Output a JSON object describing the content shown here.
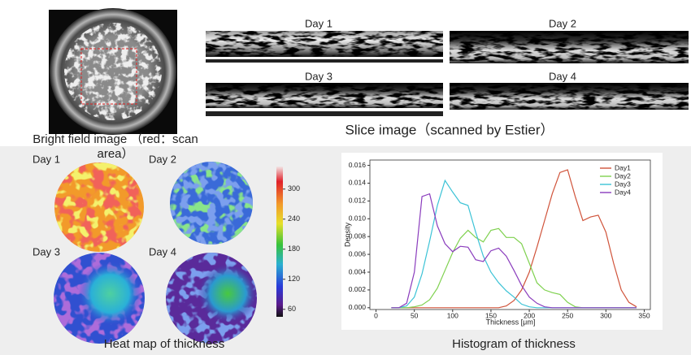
{
  "bright_field": {
    "caption": "Bright field image （red：scan area）"
  },
  "slices": {
    "title": "Slice image（scanned by Estier）",
    "labels": [
      "Day 1",
      "Day 2",
      "Day 3",
      "Day 4"
    ]
  },
  "heatmap": {
    "title": "Heat map of thickness",
    "labels": [
      "Day 1",
      "Day 2",
      "Day 3",
      "Day 4"
    ],
    "colorbar_lim": [
      45,
      345
    ],
    "colorbar_ticks": [
      60,
      120,
      180,
      240,
      300
    ]
  },
  "chart_data": {
    "type": "line",
    "title": "Histogram of thickness",
    "xlabel": "Thickness [μm]",
    "ylabel": "Density",
    "x": [
      20,
      30,
      40,
      50,
      60,
      70,
      80,
      90,
      100,
      110,
      120,
      130,
      140,
      150,
      160,
      170,
      180,
      190,
      200,
      210,
      220,
      230,
      240,
      250,
      260,
      270,
      280,
      290,
      300,
      310,
      320,
      330,
      340
    ],
    "series": [
      {
        "name": "Day1",
        "color": "#d0533a",
        "values": [
          0,
          0,
          0,
          0,
          0,
          0,
          0,
          0,
          0,
          0,
          0,
          0,
          0,
          0,
          0,
          0.0002,
          0.0008,
          0.002,
          0.004,
          0.0068,
          0.0098,
          0.0128,
          0.0152,
          0.0155,
          0.0125,
          0.0098,
          0.0102,
          0.0104,
          0.0085,
          0.005,
          0.002,
          0.0006,
          0.0001
        ]
      },
      {
        "name": "Day2",
        "color": "#7fd14f",
        "values": [
          0,
          0,
          0,
          0.0001,
          0.0003,
          0.0009,
          0.0022,
          0.0042,
          0.0062,
          0.0078,
          0.0087,
          0.0079,
          0.0074,
          0.0087,
          0.0089,
          0.0079,
          0.0079,
          0.0072,
          0.005,
          0.0028,
          0.002,
          0.0017,
          0.0015,
          0.0006,
          0.0001,
          0,
          0,
          0,
          0,
          0,
          0,
          0,
          0
        ]
      },
      {
        "name": "Day3",
        "color": "#3cc3d6",
        "values": [
          0,
          0,
          0.0002,
          0.0012,
          0.0038,
          0.0075,
          0.0115,
          0.0143,
          0.013,
          0.0118,
          0.0115,
          0.0085,
          0.0058,
          0.004,
          0.0028,
          0.0019,
          0.0012,
          0.0004,
          0.0001,
          0,
          0,
          0,
          0,
          0,
          0,
          0,
          0,
          0,
          0,
          0,
          0,
          0,
          0
        ]
      },
      {
        "name": "Day4",
        "color": "#8a3cbd",
        "values": [
          0,
          0,
          0.0005,
          0.004,
          0.0125,
          0.0128,
          0.0092,
          0.0072,
          0.0063,
          0.0069,
          0.0068,
          0.0054,
          0.0052,
          0.0064,
          0.0067,
          0.0058,
          0.0042,
          0.0025,
          0.0012,
          0.0005,
          0.0001,
          0,
          0,
          0,
          0,
          0,
          0,
          0,
          0,
          0,
          0,
          0,
          0
        ]
      }
    ],
    "xlim": [
      -8,
      358
    ],
    "xticks": [
      0,
      50,
      100,
      150,
      200,
      250,
      300,
      350
    ],
    "ylim": [
      -0.0002,
      0.0166
    ],
    "yticks": [
      {
        "value": 0,
        "label": "0.000"
      },
      {
        "value": 0.002,
        "label": "0.002"
      },
      {
        "value": 0.004,
        "label": "0.004"
      },
      {
        "value": 0.006,
        "label": "0.006"
      },
      {
        "value": 0.008,
        "label": "0.008"
      },
      {
        "value": 0.01,
        "label": "0.010"
      },
      {
        "value": 0.012,
        "label": "0.012"
      },
      {
        "value": 0.014,
        "label": "0.014"
      },
      {
        "value": 0.016,
        "label": "0.016"
      }
    ],
    "legend": "upper right"
  }
}
